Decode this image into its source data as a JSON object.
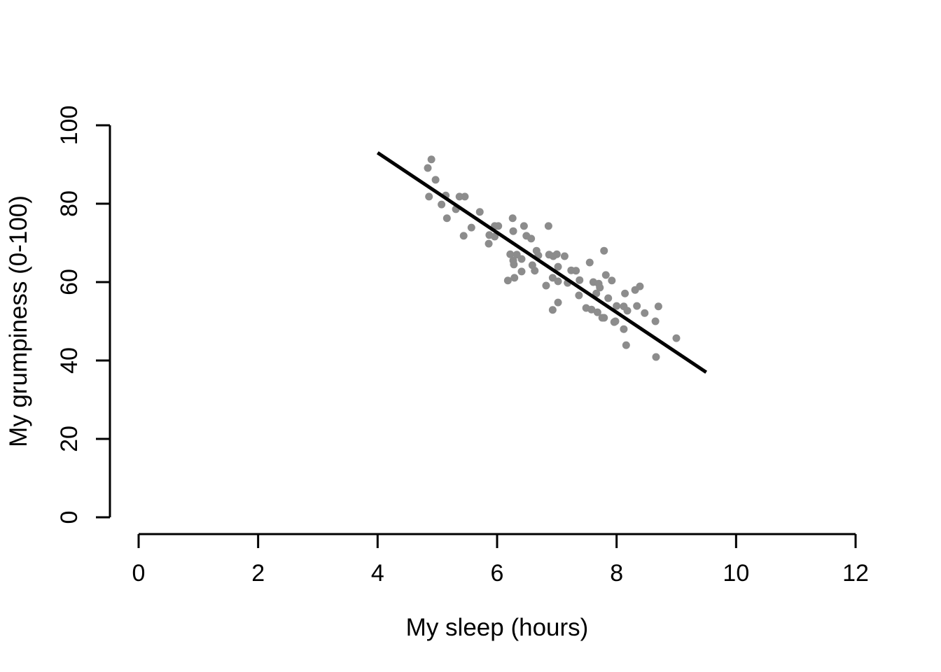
{
  "page": {
    "background": "#ffffff"
  },
  "chart_data": {
    "type": "scatter",
    "title": "",
    "xlabel": "My sleep (hours)",
    "ylabel": "My grumpiness (0-100)",
    "xlim": [
      0,
      12
    ],
    "ylim": [
      0,
      100
    ],
    "x_ticks": [
      0,
      2,
      4,
      6,
      8,
      10,
      12
    ],
    "y_ticks": [
      0,
      20,
      40,
      60,
      80,
      100
    ],
    "grid": false,
    "legend": "none",
    "point_color": "#8c8c8c",
    "line_color": "#000000",
    "axis_color": "#000000",
    "regression_line": {
      "x1": 4.0,
      "y1": 93.0,
      "x2": 9.5,
      "y2": 37.0
    },
    "points": [
      [
        4.9,
        91.3
      ],
      [
        4.84,
        89.1
      ],
      [
        4.97,
        86.1
      ],
      [
        4.86,
        81.8
      ],
      [
        5.14,
        82.1
      ],
      [
        5.07,
        79.8
      ],
      [
        5.37,
        81.8
      ],
      [
        5.46,
        81.8
      ],
      [
        5.31,
        78.6
      ],
      [
        5.16,
        76.3
      ],
      [
        5.71,
        77.9
      ],
      [
        5.57,
        73.9
      ],
      [
        5.44,
        71.8
      ],
      [
        5.96,
        74.3
      ],
      [
        6.02,
        74.3
      ],
      [
        6.26,
        76.3
      ],
      [
        6.27,
        73.0
      ],
      [
        6.45,
        74.3
      ],
      [
        5.87,
        72.0
      ],
      [
        5.96,
        71.6
      ],
      [
        5.86,
        69.8
      ],
      [
        6.49,
        71.8
      ],
      [
        6.57,
        71.1
      ],
      [
        6.86,
        74.3
      ],
      [
        6.22,
        67.1
      ],
      [
        6.33,
        67.0
      ],
      [
        6.27,
        65.5
      ],
      [
        6.41,
        65.9
      ],
      [
        6.28,
        64.5
      ],
      [
        6.66,
        68.0
      ],
      [
        6.69,
        66.8
      ],
      [
        6.87,
        67.0
      ],
      [
        6.94,
        66.6
      ],
      [
        7.0,
        67.1
      ],
      [
        7.13,
        66.6
      ],
      [
        6.59,
        64.3
      ],
      [
        7.02,
        63.9
      ],
      [
        6.41,
        62.7
      ],
      [
        6.63,
        62.9
      ],
      [
        7.24,
        63.0
      ],
      [
        7.32,
        62.9
      ],
      [
        7.55,
        65.0
      ],
      [
        7.79,
        68.0
      ],
      [
        6.18,
        60.4
      ],
      [
        6.29,
        61.1
      ],
      [
        6.93,
        61.1
      ],
      [
        7.02,
        60.2
      ],
      [
        7.18,
        59.8
      ],
      [
        6.82,
        59.1
      ],
      [
        7.38,
        60.5
      ],
      [
        7.61,
        60.0
      ],
      [
        7.7,
        59.6
      ],
      [
        7.82,
        61.8
      ],
      [
        7.92,
        60.4
      ],
      [
        7.37,
        56.6
      ],
      [
        7.66,
        57.1
      ],
      [
        7.72,
        58.6
      ],
      [
        7.86,
        55.9
      ],
      [
        7.02,
        54.8
      ],
      [
        6.93,
        52.9
      ],
      [
        7.49,
        53.4
      ],
      [
        7.58,
        53.0
      ],
      [
        7.68,
        52.3
      ],
      [
        7.79,
        50.9
      ],
      [
        7.96,
        49.8
      ],
      [
        8.0,
        53.9
      ],
      [
        8.12,
        53.8
      ],
      [
        8.18,
        52.7
      ],
      [
        8.14,
        57.1
      ],
      [
        8.31,
        58.0
      ],
      [
        8.39,
        58.9
      ],
      [
        8.34,
        53.9
      ],
      [
        8.47,
        52.1
      ],
      [
        7.76,
        50.9
      ],
      [
        7.98,
        50.0
      ],
      [
        8.12,
        48.0
      ],
      [
        8.16,
        43.9
      ],
      [
        8.65,
        50.0
      ],
      [
        8.7,
        53.8
      ],
      [
        9.0,
        45.7
      ],
      [
        8.66,
        40.9
      ]
    ]
  }
}
